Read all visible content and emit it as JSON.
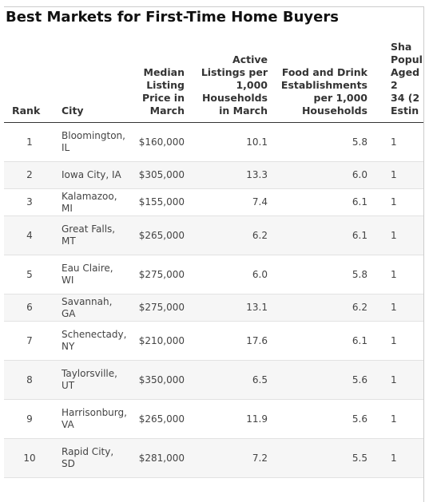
{
  "title": "Best Markets for First-Time Home Buyers",
  "table": {
    "columns": [
      [
        "Rank"
      ],
      [
        "City"
      ],
      [
        "Median",
        "Listing",
        "Price in",
        "March"
      ],
      [
        "Active",
        "Listings per",
        "1,000",
        "Households",
        "in March"
      ],
      [
        "Food and Drink",
        "Establishments",
        "per 1,000",
        "Households"
      ],
      [
        "Sha",
        "Popul",
        "Aged 2",
        "34 (2",
        "Estin"
      ]
    ],
    "rows": [
      [
        "1",
        "Bloomington, IL",
        "$160,000",
        "10.1",
        "5.8",
        "1"
      ],
      [
        "2",
        "Iowa City, IA",
        "$305,000",
        "13.3",
        "6.0",
        "1"
      ],
      [
        "3",
        "Kalamazoo, MI",
        "$155,000",
        "7.4",
        "6.1",
        "1"
      ],
      [
        "4",
        "Great Falls, MT",
        "$265,000",
        "6.2",
        "6.1",
        "1"
      ],
      [
        "5",
        "Eau Claire, WI",
        "$275,000",
        "6.0",
        "5.8",
        "1"
      ],
      [
        "6",
        "Savannah, GA",
        "$275,000",
        "13.1",
        "6.2",
        "1"
      ],
      [
        "7",
        "Schenectady, NY",
        "$210,000",
        "17.6",
        "6.1",
        "1"
      ],
      [
        "8",
        "Taylorsville, UT",
        "$350,000",
        "6.5",
        "5.6",
        "1"
      ],
      [
        "9",
        "Harrisonburg, VA",
        "$265,000",
        "11.9",
        "5.6",
        "1"
      ],
      [
        "10",
        "Rapid City, SD",
        "$281,000",
        "7.2",
        "5.5",
        "1"
      ]
    ]
  }
}
